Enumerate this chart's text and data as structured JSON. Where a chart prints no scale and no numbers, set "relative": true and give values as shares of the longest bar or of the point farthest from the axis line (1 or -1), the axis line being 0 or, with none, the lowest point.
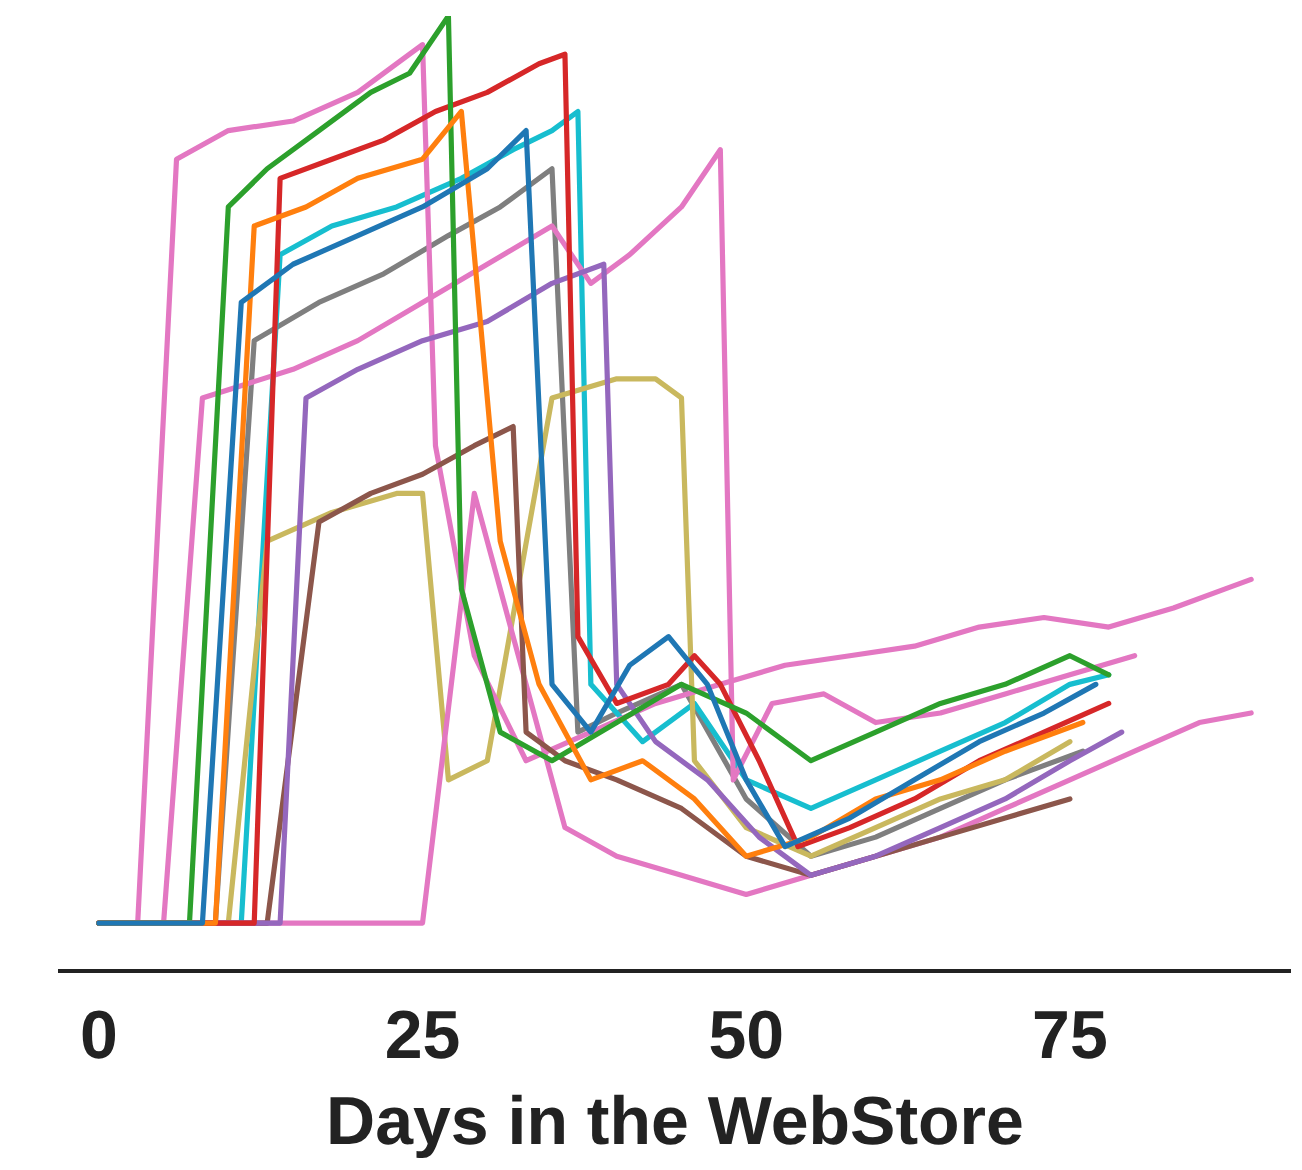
{
  "chart_data": {
    "type": "line",
    "xlabel": "Days in the WebStore",
    "relative": true,
    "xlim": [
      -3,
      92
    ],
    "xticks": [
      0,
      25,
      50,
      75
    ],
    "grid": false,
    "legend": false,
    "marker": "none",
    "line_style": "solid",
    "series": [
      {
        "color": "#1f77b4",
        "x": [
          0,
          8,
          11,
          15,
          20,
          25,
          30,
          33,
          35,
          38,
          41,
          44,
          47,
          50,
          53,
          58,
          63,
          68,
          73,
          77
        ],
        "values": [
          0.05,
          0.05,
          0.7,
          0.74,
          0.77,
          0.8,
          0.84,
          0.88,
          0.3,
          0.25,
          0.32,
          0.35,
          0.3,
          0.2,
          0.13,
          0.16,
          0.2,
          0.24,
          0.27,
          0.3
        ]
      },
      {
        "color": "#ff7f0e",
        "x": [
          0,
          9,
          12,
          16,
          20,
          25,
          28,
          31,
          34,
          38,
          42,
          46,
          50,
          55,
          60,
          65,
          70,
          76
        ],
        "values": [
          0.05,
          0.05,
          0.78,
          0.8,
          0.83,
          0.85,
          0.9,
          0.45,
          0.3,
          0.2,
          0.22,
          0.18,
          0.12,
          0.14,
          0.18,
          0.2,
          0.23,
          0.26
        ]
      },
      {
        "color": "#2ca02c",
        "x": [
          0,
          7,
          10,
          13,
          17,
          21,
          24,
          27,
          28,
          31,
          35,
          40,
          45,
          50,
          55,
          60,
          65,
          70,
          75,
          78
        ],
        "values": [
          0.05,
          0.05,
          0.8,
          0.84,
          0.88,
          0.92,
          0.94,
          1.0,
          0.4,
          0.25,
          0.22,
          0.26,
          0.3,
          0.27,
          0.22,
          0.25,
          0.28,
          0.3,
          0.33,
          0.31
        ]
      },
      {
        "color": "#d62728",
        "x": [
          0,
          12,
          14,
          18,
          22,
          26,
          30,
          34,
          36,
          37,
          40,
          44,
          46,
          48,
          51,
          54,
          58,
          63,
          68,
          73,
          78
        ],
        "values": [
          0.05,
          0.05,
          0.83,
          0.85,
          0.87,
          0.9,
          0.92,
          0.95,
          0.96,
          0.35,
          0.28,
          0.3,
          0.33,
          0.3,
          0.22,
          0.13,
          0.15,
          0.18,
          0.22,
          0.25,
          0.28
        ]
      },
      {
        "color": "#9467bd",
        "x": [
          0,
          14,
          16,
          20,
          25,
          30,
          35,
          39,
          40,
          43,
          47,
          51,
          55,
          60,
          65,
          70,
          75,
          79
        ],
        "values": [
          0.05,
          0.05,
          0.6,
          0.63,
          0.66,
          0.68,
          0.72,
          0.74,
          0.3,
          0.24,
          0.2,
          0.14,
          0.1,
          0.12,
          0.15,
          0.18,
          0.22,
          0.25
        ]
      },
      {
        "color": "#8c564b",
        "x": [
          0,
          13,
          17,
          21,
          25,
          29,
          32,
          33,
          36,
          40,
          45,
          50,
          55,
          60,
          65,
          70,
          75
        ],
        "values": [
          0.05,
          0.05,
          0.47,
          0.5,
          0.52,
          0.55,
          0.57,
          0.25,
          0.22,
          0.2,
          0.17,
          0.12,
          0.1,
          0.12,
          0.14,
          0.16,
          0.18
        ]
      },
      {
        "color": "#e377c2",
        "x": [
          0,
          3,
          6,
          10,
          15,
          20,
          24,
          25,
          26,
          29,
          33,
          38,
          43,
          48,
          53,
          58,
          63,
          68,
          73,
          78,
          83,
          87,
          89
        ],
        "values": [
          0.05,
          0.05,
          0.85,
          0.88,
          0.89,
          0.92,
          0.96,
          0.97,
          0.55,
          0.33,
          0.22,
          0.25,
          0.28,
          0.3,
          0.32,
          0.33,
          0.34,
          0.36,
          0.37,
          0.36,
          0.38,
          0.4,
          0.41
        ]
      },
      {
        "color": "#e377c2",
        "x": [
          0,
          25,
          29,
          33,
          36,
          40,
          45,
          50,
          55,
          60,
          65,
          70,
          75,
          80,
          85,
          89
        ],
        "values": [
          0.05,
          0.05,
          0.5,
          0.3,
          0.15,
          0.12,
          0.1,
          0.08,
          0.1,
          0.12,
          0.14,
          0.17,
          0.2,
          0.23,
          0.26,
          0.27
        ]
      },
      {
        "color": "#e377c2",
        "x": [
          0,
          5,
          8,
          15,
          20,
          25,
          30,
          35,
          38,
          41,
          45,
          48,
          49,
          52,
          56,
          60,
          65,
          70,
          75,
          80
        ],
        "values": [
          0.05,
          0.05,
          0.6,
          0.63,
          0.66,
          0.7,
          0.74,
          0.78,
          0.72,
          0.75,
          0.8,
          0.86,
          0.2,
          0.28,
          0.29,
          0.26,
          0.27,
          0.29,
          0.31,
          0.33
        ]
      },
      {
        "color": "#c9b85e",
        "x": [
          0,
          10,
          13,
          18,
          23,
          25,
          27,
          30,
          35,
          40,
          43,
          45,
          46,
          50,
          55,
          60,
          65,
          70,
          75
        ],
        "values": [
          0.05,
          0.05,
          0.45,
          0.48,
          0.5,
          0.5,
          0.2,
          0.22,
          0.6,
          0.62,
          0.62,
          0.6,
          0.22,
          0.15,
          0.12,
          0.15,
          0.18,
          0.2,
          0.24
        ]
      },
      {
        "color": "#17becf",
        "x": [
          0,
          11,
          14,
          18,
          23,
          28,
          32,
          35,
          37,
          38,
          42,
          46,
          50,
          55,
          60,
          65,
          70,
          75,
          78
        ],
        "values": [
          0.05,
          0.05,
          0.75,
          0.78,
          0.8,
          0.83,
          0.86,
          0.88,
          0.9,
          0.3,
          0.24,
          0.28,
          0.2,
          0.17,
          0.2,
          0.23,
          0.26,
          0.3,
          0.31
        ]
      },
      {
        "color": "#7f7f7f",
        "x": [
          0,
          9,
          12,
          17,
          22,
          27,
          31,
          35,
          37,
          40,
          45,
          50,
          55,
          60,
          65,
          70,
          76
        ],
        "values": [
          0.05,
          0.05,
          0.66,
          0.7,
          0.73,
          0.77,
          0.8,
          0.84,
          0.25,
          0.27,
          0.3,
          0.18,
          0.12,
          0.14,
          0.17,
          0.2,
          0.23
        ]
      }
    ]
  }
}
